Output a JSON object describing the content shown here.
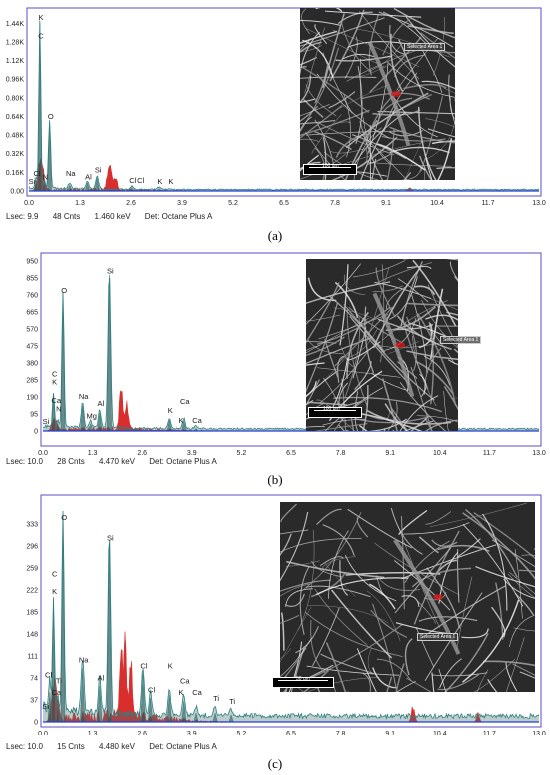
{
  "chart_data": [
    {
      "type": "area",
      "xlabel": "",
      "ylabel": "",
      "x_ticks": [
        "0.0",
        "1.3",
        "2.6",
        "3.9",
        "5.2",
        "6.5",
        "7.8",
        "9.1",
        "10.4",
        "11.7",
        "13.0"
      ],
      "y_ticks": [
        "0.00",
        "0.16K",
        "0.32K",
        "0.48K",
        "0.64K",
        "0.80K",
        "0.96K",
        "1.12K",
        "1.28K",
        "1.44K"
      ],
      "xlim": [
        0,
        13
      ],
      "ylim": [
        0,
        1.52
      ],
      "series_peaks": [
        {
          "e": 0.18,
          "h": 0.09,
          "w": 0.04
        },
        {
          "e": 0.277,
          "h": 1.44,
          "w": 0.035
        },
        {
          "e": 0.39,
          "h": 0.07,
          "w": 0.03
        },
        {
          "e": 0.525,
          "h": 0.58,
          "w": 0.04
        },
        {
          "e": 1.04,
          "h": 0.05,
          "w": 0.05
        },
        {
          "e": 1.49,
          "h": 0.07,
          "w": 0.05
        },
        {
          "e": 1.74,
          "h": 0.11,
          "w": 0.05
        },
        {
          "e": 2.62,
          "h": 0.03,
          "w": 0.05
        },
        {
          "e": 3.31,
          "h": 0.02,
          "w": 0.05
        }
      ],
      "red_peaks": [
        {
          "e": 0.3,
          "h": 0.25,
          "w": 0.1
        },
        {
          "e": 2.05,
          "h": 0.22,
          "w": 0.07
        },
        {
          "e": 2.2,
          "h": 0.13,
          "w": 0.06
        },
        {
          "e": 9.7,
          "h": 0.03,
          "w": 0.06
        }
      ],
      "background": 0.012,
      "peak_labels": [
        {
          "text": "K",
          "e": 0.28,
          "v": 1.47
        },
        {
          "text": "C",
          "e": 0.28,
          "v": 1.31
        },
        {
          "text": "O",
          "e": 0.53,
          "v": 0.62
        },
        {
          "text": "Na",
          "e": 1.04,
          "v": 0.13
        },
        {
          "text": "Al",
          "e": 1.49,
          "v": 0.1
        },
        {
          "text": "Si",
          "e": 1.74,
          "v": 0.16
        },
        {
          "text": "Cl",
          "e": 0.18,
          "v": 0.13
        },
        {
          "text": "N",
          "e": 0.39,
          "v": 0.1
        },
        {
          "text": "Si",
          "e": 0.05,
          "v": 0.06
        },
        {
          "text": "Cl",
          "e": 2.62,
          "v": 0.07
        },
        {
          "text": "Cl",
          "e": 2.82,
          "v": 0.07
        },
        {
          "text": "K",
          "e": 3.31,
          "v": 0.06
        },
        {
          "text": "K",
          "e": 3.59,
          "v": 0.06
        }
      ],
      "footer": {
        "lsec": "Lsec: 9.9",
        "cnts": "48 Cnts",
        "kev": "1.460 keV",
        "det": "Det: Octane Plus A"
      },
      "sem": {
        "label": "Selected Area 1",
        "scale": "100 um"
      },
      "caption": "(a)"
    },
    {
      "type": "area",
      "xlabel": "",
      "ylabel": "",
      "x_ticks": [
        "0.0",
        "1.3",
        "2.6",
        "3.9",
        "5.2",
        "6.5",
        "7.8",
        "9.1",
        "10.4",
        "11.7",
        "13.0"
      ],
      "y_ticks": [
        "0",
        "95",
        "190",
        "285",
        "380",
        "475",
        "570",
        "665",
        "760",
        "855",
        "950"
      ],
      "xlim": [
        0,
        13
      ],
      "ylim": [
        0,
        960
      ],
      "series_peaks": [
        {
          "e": 0.277,
          "h": 190,
          "w": 0.035
        },
        {
          "e": 0.39,
          "h": 40,
          "w": 0.03
        },
        {
          "e": 0.525,
          "h": 760,
          "w": 0.04
        },
        {
          "e": 1.04,
          "h": 140,
          "w": 0.05
        },
        {
          "e": 1.25,
          "h": 40,
          "w": 0.05
        },
        {
          "e": 1.49,
          "h": 100,
          "w": 0.05
        },
        {
          "e": 1.74,
          "h": 870,
          "w": 0.05
        },
        {
          "e": 3.31,
          "h": 60,
          "w": 0.05
        },
        {
          "e": 3.69,
          "h": 55,
          "w": 0.05
        },
        {
          "e": 4.01,
          "h": 15,
          "w": 0.05
        }
      ],
      "red_peaks": [
        {
          "e": 0.3,
          "h": 60,
          "w": 0.1
        },
        {
          "e": 2.05,
          "h": 240,
          "w": 0.06
        },
        {
          "e": 2.2,
          "h": 120,
          "w": 0.06
        },
        {
          "e": 9.7,
          "h": 25,
          "w": 0.06
        }
      ],
      "background": 12,
      "peak_labels": [
        {
          "text": "Si",
          "e": 1.74,
          "v": 880
        },
        {
          "text": "O",
          "e": 0.53,
          "v": 770
        },
        {
          "text": "C",
          "e": 0.28,
          "v": 305
        },
        {
          "text": "K",
          "e": 0.28,
          "v": 260
        },
        {
          "text": "Ca",
          "e": 0.32,
          "v": 155
        },
        {
          "text": "N",
          "e": 0.39,
          "v": 110
        },
        {
          "text": "Si",
          "e": 0.05,
          "v": 40
        },
        {
          "text": "Na",
          "e": 1.04,
          "v": 180
        },
        {
          "text": "Al",
          "e": 1.49,
          "v": 140
        },
        {
          "text": "Mg",
          "e": 1.25,
          "v": 70
        },
        {
          "text": "Ca",
          "e": 3.69,
          "v": 150
        },
        {
          "text": "K",
          "e": 3.31,
          "v": 100
        },
        {
          "text": "K",
          "e": 3.59,
          "v": 45
        },
        {
          "text": "Ca",
          "e": 4.01,
          "v": 45
        }
      ],
      "footer": {
        "lsec": "Lsec: 10.0",
        "cnts": "28 Cnts",
        "kev": "4.470 keV",
        "det": "Det: Octane Plus A"
      },
      "sem": {
        "label": "Selected Area 1",
        "scale": "100 um"
      },
      "caption": "(b)"
    },
    {
      "type": "area",
      "xlabel": "",
      "ylabel": "",
      "x_ticks": [
        "0.0",
        "1.3",
        "2.6",
        "3.9",
        "5.2",
        "6.5",
        "7.8",
        "9.1",
        "10.4",
        "11.7",
        "13.0"
      ],
      "y_ticks": [
        "0",
        "37",
        "74",
        "111",
        "148",
        "185",
        "222",
        "259",
        "296",
        "333"
      ],
      "xlim": [
        0,
        13
      ],
      "ylim": [
        0,
        370
      ],
      "series_peaks": [
        {
          "e": 0.18,
          "h": 50,
          "w": 0.04
        },
        {
          "e": 0.277,
          "h": 190,
          "w": 0.035
        },
        {
          "e": 0.39,
          "h": 30,
          "w": 0.03
        },
        {
          "e": 0.525,
          "h": 340,
          "w": 0.04
        },
        {
          "e": 1.04,
          "h": 90,
          "w": 0.05
        },
        {
          "e": 1.49,
          "h": 60,
          "w": 0.05
        },
        {
          "e": 1.74,
          "h": 300,
          "w": 0.05
        },
        {
          "e": 2.62,
          "h": 80,
          "w": 0.05
        },
        {
          "e": 2.82,
          "h": 40,
          "w": 0.05
        },
        {
          "e": 3.31,
          "h": 45,
          "w": 0.05
        },
        {
          "e": 3.69,
          "h": 35,
          "w": 0.05
        },
        {
          "e": 4.01,
          "h": 15,
          "w": 0.05
        },
        {
          "e": 4.51,
          "h": 15,
          "w": 0.05
        },
        {
          "e": 4.93,
          "h": 12,
          "w": 0.05
        }
      ],
      "red_peaks": [
        {
          "e": 0.3,
          "h": 60,
          "w": 0.1
        },
        {
          "e": 2.05,
          "h": 110,
          "w": 0.05
        },
        {
          "e": 2.15,
          "h": 150,
          "w": 0.05
        },
        {
          "e": 2.3,
          "h": 90,
          "w": 0.06
        },
        {
          "e": 9.7,
          "h": 25,
          "w": 0.06
        },
        {
          "e": 11.4,
          "h": 15,
          "w": 0.05
        }
      ],
      "background": 10,
      "peak_labels": [
        {
          "text": "O",
          "e": 0.53,
          "v": 340
        },
        {
          "text": "Si",
          "e": 1.74,
          "v": 305
        },
        {
          "text": "C",
          "e": 0.28,
          "v": 245
        },
        {
          "text": "K",
          "e": 0.28,
          "v": 215
        },
        {
          "text": "Na",
          "e": 1.04,
          "v": 100
        },
        {
          "text": "Al",
          "e": 1.49,
          "v": 70
        },
        {
          "text": "Cl",
          "e": 2.62,
          "v": 90
        },
        {
          "text": "Cl",
          "e": 2.82,
          "v": 50
        },
        {
          "text": "Cl",
          "e": 0.12,
          "v": 75
        },
        {
          "text": "Ti",
          "e": 0.39,
          "v": 65
        },
        {
          "text": "Ca",
          "e": 0.32,
          "v": 45
        },
        {
          "text": "Si",
          "e": 0.05,
          "v": 22
        },
        {
          "text": "K",
          "e": 3.31,
          "v": 90
        },
        {
          "text": "Ca",
          "e": 3.69,
          "v": 65
        },
        {
          "text": "K",
          "e": 3.59,
          "v": 45
        },
        {
          "text": "Ca",
          "e": 4.01,
          "v": 45
        },
        {
          "text": "Ti",
          "e": 4.51,
          "v": 35
        },
        {
          "text": "Ti",
          "e": 4.93,
          "v": 30
        }
      ],
      "footer": {
        "lsec": "Lsec: 10.0",
        "cnts": "15 Cnts",
        "kev": "4.480 keV",
        "det": "Det: Octane Plus A"
      },
      "sem": {
        "label": "Selected Area 1",
        "scale": "50 um"
      },
      "caption": "(c)"
    }
  ],
  "colors": {
    "frame": "#5b4cc4",
    "spectrum": "#2f7f7f",
    "red": "#d41818",
    "baseline": "#2040d0"
  }
}
